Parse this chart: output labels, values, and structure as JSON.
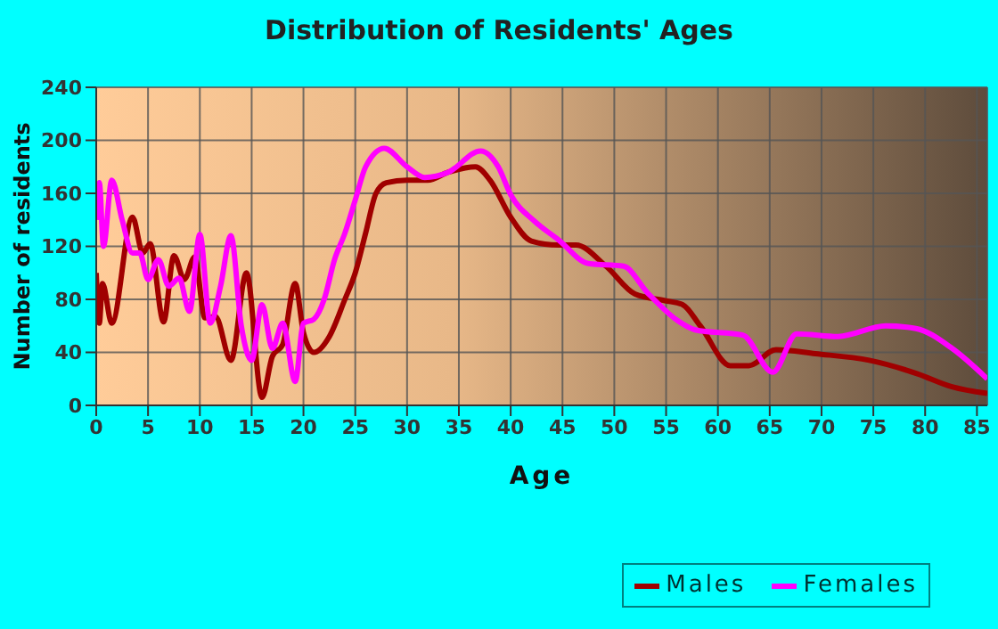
{
  "chart_data": {
    "type": "line",
    "title": "Distribution of Residents' Ages",
    "xlabel": "Age",
    "ylabel": "Number of residents",
    "xlim": [
      0,
      86
    ],
    "xticks": [
      0,
      5,
      10,
      15,
      20,
      25,
      30,
      35,
      40,
      45,
      50,
      55,
      60,
      65,
      70,
      75,
      80,
      85
    ],
    "ylim": [
      0,
      240
    ],
    "yticks": [
      0,
      40,
      80,
      120,
      160,
      200,
      240
    ],
    "grid": true,
    "legend": "bottom right",
    "marker": "none",
    "line_style": "solid",
    "series": [
      {
        "name": "Males",
        "color": "#a00000",
        "x": [
          0,
          0.3,
          0.6,
          1.5,
          3.5,
          4.5,
          5.2,
          6.5,
          7.5,
          8.5,
          9.5,
          10.5,
          11.5,
          13,
          14.5,
          16,
          17,
          18,
          19.2,
          20,
          21,
          22.5,
          24,
          25,
          26,
          27,
          28,
          30,
          32,
          34,
          36.6,
          38,
          40,
          42,
          44.6,
          46.3,
          49.2,
          52,
          54.9,
          56.6,
          58.3,
          61.2,
          63,
          65.6,
          69.4,
          74.6,
          79.2,
          82.6,
          86
        ],
        "values": [
          100,
          62,
          92,
          62,
          142,
          115,
          122,
          63,
          113,
          95,
          112,
          66,
          67,
          34,
          100,
          6,
          37,
          46,
          92,
          55,
          40,
          52,
          80,
          100,
          130,
          160,
          168,
          170,
          170,
          176,
          180,
          170,
          142,
          124,
          121,
          121,
          105,
          84,
          79,
          76,
          60,
          30,
          30,
          42,
          39,
          34,
          24,
          14,
          9
        ]
      },
      {
        "name": "Females",
        "color": "#ff00ff",
        "x": [
          0,
          0.3,
          0.7,
          1.5,
          2.5,
          3.5,
          4.2,
          5,
          6,
          7,
          8,
          9,
          10,
          11,
          12,
          13,
          14,
          15,
          16,
          17,
          18,
          19.2,
          20,
          21,
          22,
          23,
          24,
          25,
          26,
          27.8,
          30,
          31.7,
          34,
          37.1,
          38.8,
          40,
          42.3,
          44.6,
          47.5,
          50.9,
          53.2,
          56.1,
          57.8,
          62.4,
          65.3,
          67.6,
          71.6,
          76.2,
          79.1,
          82.6,
          86
        ],
        "values": [
          140,
          168,
          120,
          170,
          140,
          115,
          115,
          95,
          110,
          90,
          96,
          71,
          129,
          62,
          90,
          128,
          60,
          34,
          76,
          43,
          62,
          18,
          62,
          65,
          80,
          110,
          130,
          155,
          180,
          194,
          180,
          172,
          176,
          192,
          180,
          159,
          139,
          125,
          107,
          105,
          85,
          64,
          57,
          53,
          25,
          54,
          52,
          60,
          58,
          43,
          20
        ]
      }
    ]
  }
}
